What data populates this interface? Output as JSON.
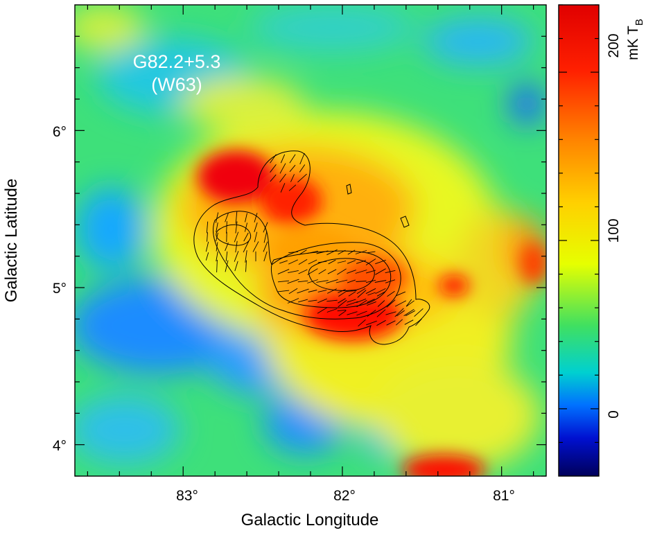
{
  "chart_data": {
    "type": "heatmap",
    "object_name": "G82.2+5.3",
    "object_alias": "(W63)",
    "xlabel": "Galactic Longitude",
    "ylabel": "Galactic Latitude",
    "x_ticks": [
      "83°",
      "82°",
      "81°"
    ],
    "x_tick_values": [
      83,
      82,
      81
    ],
    "y_ticks": [
      "4°",
      "5°",
      "6°"
    ],
    "y_tick_values": [
      4,
      5,
      6
    ],
    "xlim": [
      83.68,
      80.72
    ],
    "ylim": [
      3.8,
      6.8
    ],
    "colorbar": {
      "label": "mK T",
      "label_sub": "B",
      "ticks": [
        "0",
        "100",
        "200"
      ],
      "tick_values": [
        0,
        100,
        200
      ],
      "range": [
        -40,
        240
      ],
      "colors": [
        "#00005a",
        "#0010d0",
        "#0070ff",
        "#00d0d0",
        "#40e060",
        "#e6ff00",
        "#ffd000",
        "#ff8000",
        "#ff2000",
        "#e00000"
      ]
    },
    "emission_peaks": [
      {
        "l": 82.7,
        "b": 5.65,
        "level": 220
      },
      {
        "l": 82.3,
        "b": 5.55,
        "level": 215
      },
      {
        "l": 81.95,
        "b": 4.85,
        "level": 220
      },
      {
        "l": 81.8,
        "b": 5.1,
        "level": 170
      },
      {
        "l": 82.0,
        "b": 5.25,
        "level": 150
      },
      {
        "l": 81.25,
        "b": 5.0,
        "level": 210
      },
      {
        "l": 81.4,
        "b": 3.85,
        "level": 200
      },
      {
        "l": 80.95,
        "b": 5.3,
        "level": 150
      },
      {
        "l": 82.55,
        "b": 5.05,
        "level": 120
      }
    ],
    "contours_present": true,
    "polarization_vectors_present": true
  }
}
